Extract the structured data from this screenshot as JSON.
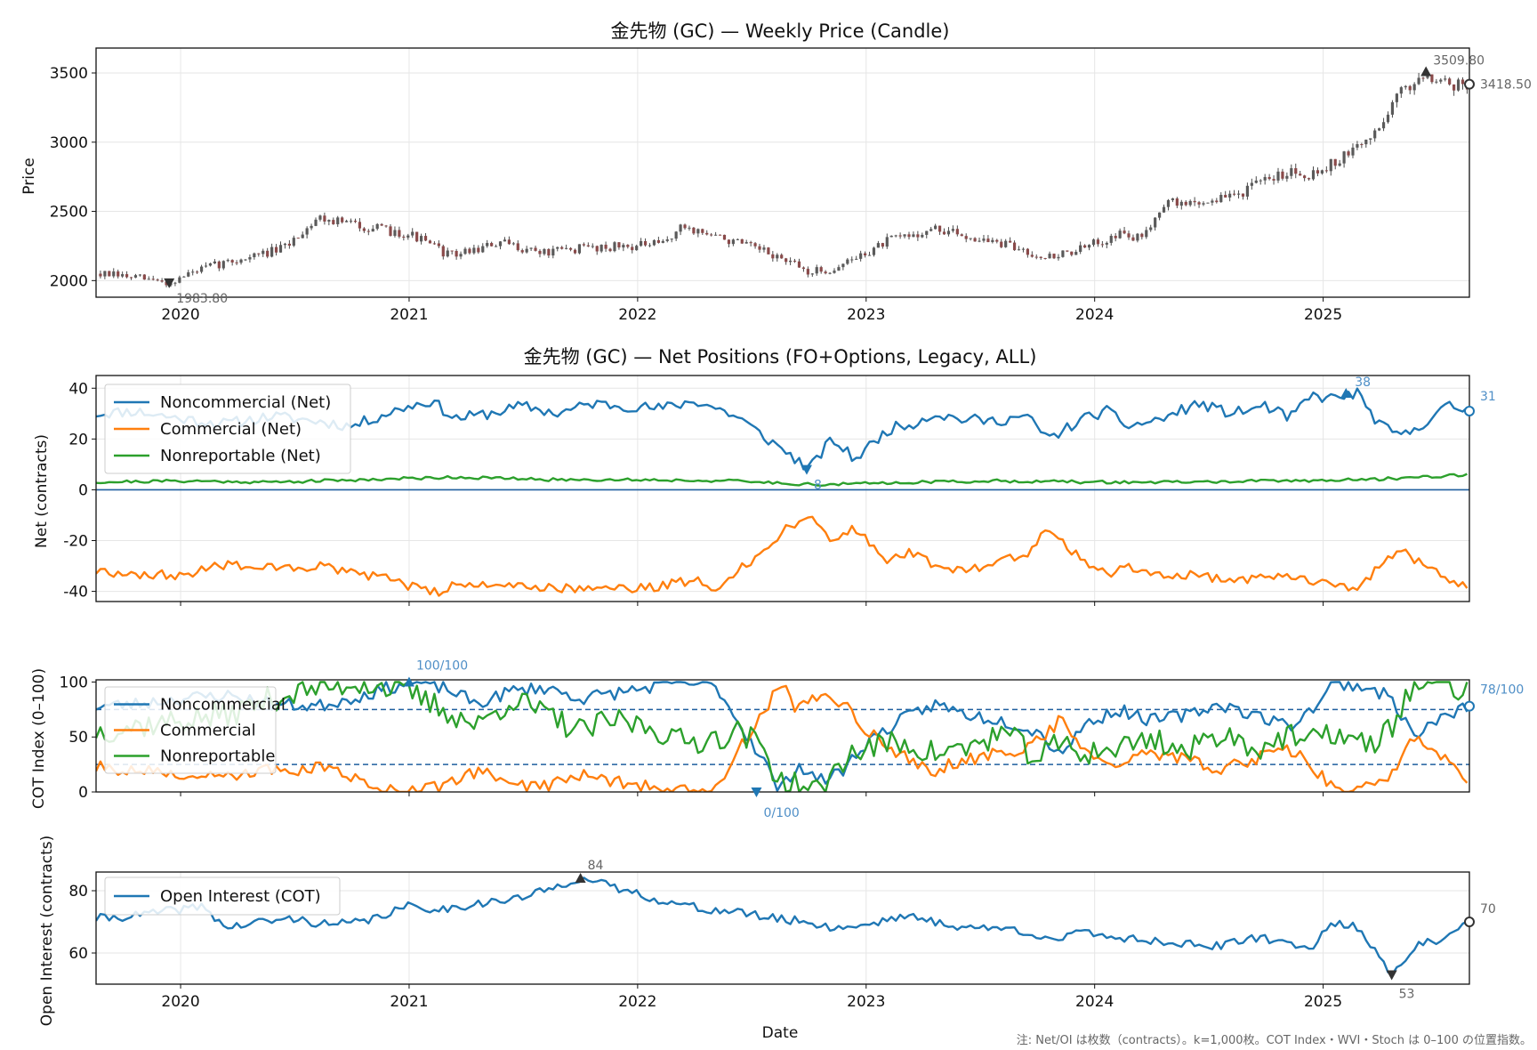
{
  "colors": {
    "price_candle": "#4a4a4a",
    "noncommercial": "#1f77b4",
    "commercial": "#ff7f0e",
    "nonreportable": "#2ca02c",
    "open_interest": "#1f77b4",
    "reference_line": "#1f5f9f",
    "grid": "#e6e6e6",
    "annotation_gray": "#666666",
    "annotation_blue": "#4f8fc7"
  },
  "footnote": "注: Net/OI は枚数（contracts）。k=1,000枚。COT Index・WVI・Stoch は 0–100 の位置指数。",
  "chart_data": [
    {
      "id": "price",
      "type": "line",
      "title": "金先物 (GC) — Weekly Price (Candle)",
      "xlabel": "",
      "ylabel": "Price",
      "x_range": [
        2019.63,
        2025.64
      ],
      "ylim": [
        1880,
        3680
      ],
      "y_ticks": [
        2000,
        2500,
        3000,
        3500
      ],
      "x_ticks": [
        "2020",
        "2021",
        "2022",
        "2023",
        "2024",
        "2025"
      ],
      "grid": true,
      "series": [
        {
          "x": [
            2019.63,
            2019.8,
            2019.95,
            2020.05,
            2020.15,
            2020.25,
            2020.45,
            2020.6,
            2020.75,
            2020.9,
            2021.0,
            2021.18,
            2021.4,
            2021.6,
            2021.78,
            2021.95,
            2022.1,
            2022.2,
            2022.4,
            2022.6,
            2022.75,
            2022.85,
            2023.0,
            2023.1,
            2023.3,
            2023.45,
            2023.6,
            2023.8,
            2023.95,
            2024.1,
            2024.2,
            2024.3,
            2024.45,
            2024.6,
            2024.75,
            2024.85,
            2024.95,
            2025.1,
            2025.25,
            2025.3,
            2025.45,
            2025.55,
            2025.64
          ],
          "values": [
            2050,
            2020,
            1984,
            2060,
            2110,
            2150,
            2230,
            2460,
            2410,
            2360,
            2340,
            2180,
            2270,
            2200,
            2240,
            2250,
            2260,
            2390,
            2290,
            2180,
            2060,
            2080,
            2200,
            2290,
            2370,
            2320,
            2260,
            2170,
            2230,
            2340,
            2300,
            2560,
            2560,
            2610,
            2720,
            2800,
            2770,
            2900,
            3100,
            3300,
            3510,
            3420,
            3418.5
          ]
        }
      ],
      "annotations": [
        {
          "label": "1983.80",
          "x": 2019.95,
          "y": 1983.8,
          "marker": "down"
        },
        {
          "label": "3509.80",
          "x": 2025.45,
          "y": 3509.8,
          "marker": "up"
        },
        {
          "label": "3418.50",
          "x": 2025.64,
          "y": 3418.5,
          "marker": "circle"
        }
      ]
    },
    {
      "id": "net",
      "type": "line",
      "title": "金先物 (GC) — Net Positions (FO+Options, Legacy, ALL)",
      "xlabel": "",
      "ylabel": "Net (contracts)",
      "x_range": [
        2019.63,
        2025.64
      ],
      "ylim": [
        -44,
        45
      ],
      "y_ticks": [
        -40,
        -20,
        0,
        20,
        40
      ],
      "legend": "top-left",
      "grid": true,
      "zero_line": 0,
      "series": [
        {
          "name": "Noncommercial (Net)",
          "x": [
            2019.63,
            2019.8,
            2020.0,
            2020.2,
            2020.4,
            2020.6,
            2020.75,
            2020.9,
            2021.0,
            2021.1,
            2021.2,
            2021.35,
            2021.5,
            2021.65,
            2021.8,
            2021.95,
            2022.1,
            2022.25,
            2022.35,
            2022.45,
            2022.55,
            2022.65,
            2022.75,
            2022.85,
            2022.95,
            2023.1,
            2023.2,
            2023.3,
            2023.4,
            2023.55,
            2023.7,
            2023.8,
            2023.95,
            2024.05,
            2024.15,
            2024.3,
            2024.45,
            2024.6,
            2024.75,
            2024.85,
            2024.95,
            2025.05,
            2025.15,
            2025.25,
            2025.35,
            2025.45,
            2025.55,
            2025.64
          ],
          "values": [
            30,
            31,
            28,
            26,
            29,
            27,
            25,
            30,
            33,
            35,
            28,
            30,
            33,
            30,
            34,
            33,
            32,
            35,
            32,
            28,
            21,
            15,
            8,
            20,
            12,
            24,
            26,
            30,
            28,
            27,
            29,
            20,
            28,
            31,
            25,
            28,
            34,
            30,
            33,
            28,
            37,
            36,
            38,
            25,
            21,
            27,
            33,
            31
          ]
        },
        {
          "name": "Commercial (Net)",
          "x": [
            2019.63,
            2019.8,
            2020.0,
            2020.2,
            2020.4,
            2020.6,
            2020.75,
            2020.9,
            2021.0,
            2021.1,
            2021.2,
            2021.35,
            2021.5,
            2021.65,
            2021.8,
            2021.95,
            2022.1,
            2022.25,
            2022.35,
            2022.45,
            2022.55,
            2022.65,
            2022.75,
            2022.85,
            2022.95,
            2023.1,
            2023.2,
            2023.3,
            2023.4,
            2023.55,
            2023.7,
            2023.8,
            2023.95,
            2024.05,
            2024.15,
            2024.3,
            2024.45,
            2024.6,
            2024.75,
            2024.85,
            2024.95,
            2025.05,
            2025.15,
            2025.25,
            2025.35,
            2025.45,
            2025.55,
            2025.64
          ],
          "values": [
            -32,
            -33,
            -34,
            -29,
            -31,
            -30,
            -33,
            -35,
            -38,
            -41,
            -37,
            -38,
            -37,
            -39,
            -38,
            -39,
            -38,
            -35,
            -40,
            -30,
            -25,
            -15,
            -10,
            -20,
            -15,
            -28,
            -24,
            -30,
            -32,
            -29,
            -25,
            -15,
            -28,
            -33,
            -30,
            -33,
            -34,
            -36,
            -34,
            -33,
            -36,
            -38,
            -40,
            -30,
            -24,
            -30,
            -36,
            -38
          ]
        },
        {
          "name": "Nonreportable (Net)",
          "x": [
            2019.63,
            2020.0,
            2020.4,
            2020.8,
            2021.2,
            2021.6,
            2022.0,
            2022.4,
            2022.8,
            2023.2,
            2023.6,
            2024.0,
            2024.4,
            2024.8,
            2025.2,
            2025.64
          ],
          "values": [
            3,
            3.5,
            3,
            4,
            5,
            4,
            4,
            3.5,
            2,
            3,
            3.5,
            3,
            3,
            3.5,
            4,
            6
          ]
        }
      ],
      "annotations": [
        {
          "label": "38",
          "series": "Noncommercial (Net)",
          "x": 2025.1,
          "y": 38,
          "marker": "up"
        },
        {
          "label": "8",
          "series": "Noncommercial (Net)",
          "x": 2022.74,
          "y": 8,
          "marker": "down"
        },
        {
          "label": "31",
          "series": "Noncommercial (Net)",
          "x": 2025.64,
          "y": 31,
          "marker": "circle"
        }
      ]
    },
    {
      "id": "cot_index",
      "type": "line",
      "title": "",
      "xlabel": "",
      "ylabel": "COT Index (0–100)",
      "x_range": [
        2019.63,
        2025.64
      ],
      "ylim": [
        0,
        102
      ],
      "y_ticks": [
        0,
        50,
        100
      ],
      "legend": "top-left",
      "grid": false,
      "reference_lines": [
        25,
        75
      ],
      "series": [
        {
          "name": "Noncommercial",
          "x": [
            2019.63,
            2019.8,
            2020.0,
            2020.2,
            2020.4,
            2020.6,
            2020.8,
            2021.0,
            2021.15,
            2021.3,
            2021.45,
            2021.6,
            2021.75,
            2021.9,
            2022.05,
            2022.2,
            2022.35,
            2022.45,
            2022.55,
            2022.62,
            2022.7,
            2022.8,
            2022.9,
            2023.0,
            2023.15,
            2023.3,
            2023.45,
            2023.6,
            2023.75,
            2023.85,
            2023.95,
            2024.1,
            2024.25,
            2024.4,
            2024.55,
            2024.7,
            2024.85,
            2024.95,
            2025.05,
            2025.2,
            2025.3,
            2025.4,
            2025.5,
            2025.64
          ],
          "values": [
            78,
            80,
            85,
            88,
            80,
            78,
            88,
            100,
            95,
            80,
            92,
            95,
            85,
            90,
            95,
            100,
            95,
            60,
            30,
            0,
            25,
            10,
            20,
            45,
            65,
            80,
            70,
            65,
            55,
            35,
            60,
            75,
            65,
            70,
            80,
            70,
            60,
            75,
            100,
            95,
            85,
            50,
            65,
            78
          ]
        },
        {
          "name": "Commercial",
          "x": [
            2019.63,
            2019.8,
            2020.0,
            2020.2,
            2020.4,
            2020.6,
            2020.8,
            2021.0,
            2021.15,
            2021.3,
            2021.45,
            2021.6,
            2021.75,
            2021.9,
            2022.05,
            2022.2,
            2022.35,
            2022.45,
            2022.55,
            2022.62,
            2022.7,
            2022.8,
            2022.9,
            2023.0,
            2023.15,
            2023.3,
            2023.45,
            2023.6,
            2023.75,
            2023.85,
            2023.95,
            2024.1,
            2024.25,
            2024.4,
            2024.55,
            2024.7,
            2024.85,
            2024.95,
            2025.05,
            2025.2,
            2025.3,
            2025.4,
            2025.5,
            2025.64
          ],
          "values": [
            22,
            20,
            15,
            12,
            20,
            22,
            10,
            0,
            5,
            20,
            8,
            5,
            15,
            10,
            5,
            0,
            5,
            40,
            70,
            100,
            75,
            90,
            80,
            55,
            35,
            20,
            30,
            35,
            45,
            65,
            40,
            25,
            35,
            30,
            20,
            30,
            40,
            25,
            0,
            5,
            15,
            50,
            35,
            12
          ]
        },
        {
          "name": "Nonreportable",
          "x": [
            2019.63,
            2019.8,
            2020.0,
            2020.2,
            2020.4,
            2020.6,
            2020.8,
            2021.0,
            2021.15,
            2021.3,
            2021.45,
            2021.6,
            2021.75,
            2021.9,
            2022.05,
            2022.2,
            2022.35,
            2022.45,
            2022.55,
            2022.62,
            2022.7,
            2022.8,
            2022.9,
            2023.0,
            2023.15,
            2023.3,
            2023.45,
            2023.6,
            2023.75,
            2023.85,
            2023.95,
            2024.1,
            2024.25,
            2024.4,
            2024.55,
            2024.7,
            2024.85,
            2024.95,
            2025.05,
            2025.2,
            2025.3,
            2025.4,
            2025.5,
            2025.64
          ],
          "values": [
            55,
            60,
            65,
            70,
            85,
            95,
            100,
            90,
            75,
            60,
            85,
            70,
            55,
            65,
            60,
            45,
            50,
            55,
            40,
            10,
            5,
            0,
            30,
            40,
            45,
            35,
            40,
            55,
            30,
            45,
            35,
            40,
            50,
            35,
            55,
            40,
            50,
            45,
            55,
            40,
            60,
            100,
            100,
            90
          ]
        }
      ],
      "annotations": [
        {
          "label": "100/100",
          "series": "Noncommercial",
          "x": 2021.0,
          "y": 100,
          "marker": "up"
        },
        {
          "label": "0/100",
          "series": "Noncommercial",
          "x": 2022.52,
          "y": 0,
          "marker": "down"
        },
        {
          "label": "78/100",
          "series": "Noncommercial",
          "x": 2025.64,
          "y": 78,
          "marker": "circle"
        }
      ]
    },
    {
      "id": "open_interest",
      "type": "line",
      "title": "",
      "xlabel": "Date",
      "ylabel": "Open Interest (contracts)",
      "x_range": [
        2019.63,
        2025.64
      ],
      "ylim": [
        50,
        86
      ],
      "y_ticks": [
        60,
        80
      ],
      "x_ticks": [
        "2020",
        "2021",
        "2022",
        "2023",
        "2024",
        "2025"
      ],
      "legend": "top-left",
      "grid": true,
      "series": [
        {
          "name": "Open Interest (COT)",
          "x": [
            2019.63,
            2019.8,
            2020.0,
            2020.1,
            2020.2,
            2020.35,
            2020.5,
            2020.65,
            2020.8,
            2021.0,
            2021.15,
            2021.3,
            2021.45,
            2021.6,
            2021.7,
            2021.75,
            2021.85,
            2022.0,
            2022.15,
            2022.3,
            2022.45,
            2022.6,
            2022.75,
            2022.85,
            2023.0,
            2023.15,
            2023.3,
            2023.45,
            2023.6,
            2023.75,
            2023.85,
            2023.95,
            2024.1,
            2024.25,
            2024.4,
            2024.55,
            2024.7,
            2024.85,
            2024.95,
            2025.05,
            2025.15,
            2025.25,
            2025.3,
            2025.4,
            2025.55,
            2025.64
          ],
          "values": [
            71,
            72,
            74,
            75,
            68,
            70,
            71,
            69,
            70,
            75,
            74,
            76,
            77,
            80,
            83,
            84,
            82,
            79,
            76,
            74,
            73,
            71,
            70,
            68,
            69,
            72,
            70,
            68,
            68,
            66,
            64,
            67,
            65,
            64,
            63,
            62,
            65,
            63,
            62,
            70,
            68,
            59,
            53,
            62,
            65,
            70
          ]
        }
      ],
      "annotations": [
        {
          "label": "84",
          "x": 2021.75,
          "y": 84,
          "marker": "up"
        },
        {
          "label": "53",
          "x": 2025.3,
          "y": 53,
          "marker": "down"
        },
        {
          "label": "70",
          "x": 2025.64,
          "y": 70,
          "marker": "circle"
        }
      ]
    }
  ]
}
